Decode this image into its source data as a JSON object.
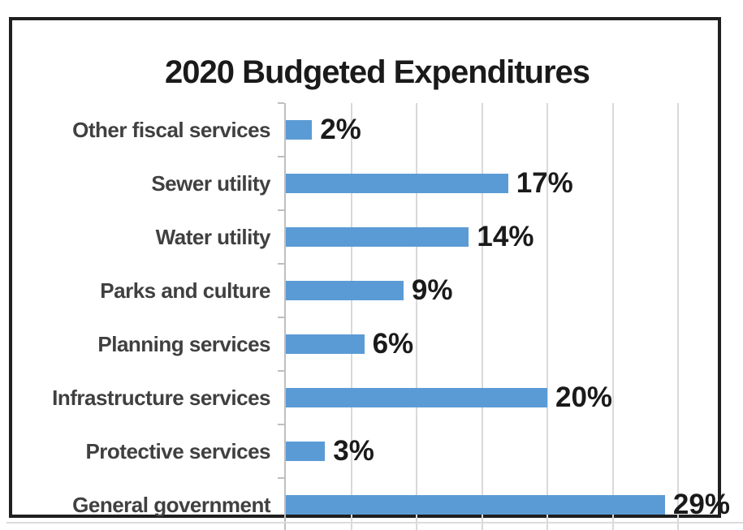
{
  "chart_data": {
    "type": "bar",
    "orientation": "horizontal",
    "title": "2020 Budgeted Expenditures",
    "categories": [
      "Other fiscal services",
      "Sewer utility",
      "Water utility",
      "Parks and culture",
      "Planning services",
      "Infrastructure services",
      "Protective services",
      "General government"
    ],
    "values": [
      2,
      17,
      14,
      9,
      6,
      20,
      3,
      29
    ],
    "value_labels": [
      "2%",
      "17%",
      "14%",
      "9%",
      "6%",
      "20%",
      "3%",
      "29%"
    ],
    "value_suffix": "%",
    "xlabel": "",
    "ylabel": "",
    "xlim": [
      0,
      30
    ],
    "gridline_interval": 5,
    "grid": true,
    "legend": false,
    "value_axis_labels_visible": false,
    "colors": {
      "bar": "#5b9bd5",
      "gridline": "#d9d9d9",
      "axis": "#bfbfbf",
      "category_label": "#404040",
      "value_label": "#1a1a1a",
      "title": "#1a1a1a",
      "frame_border": "#1f1f1f"
    }
  }
}
